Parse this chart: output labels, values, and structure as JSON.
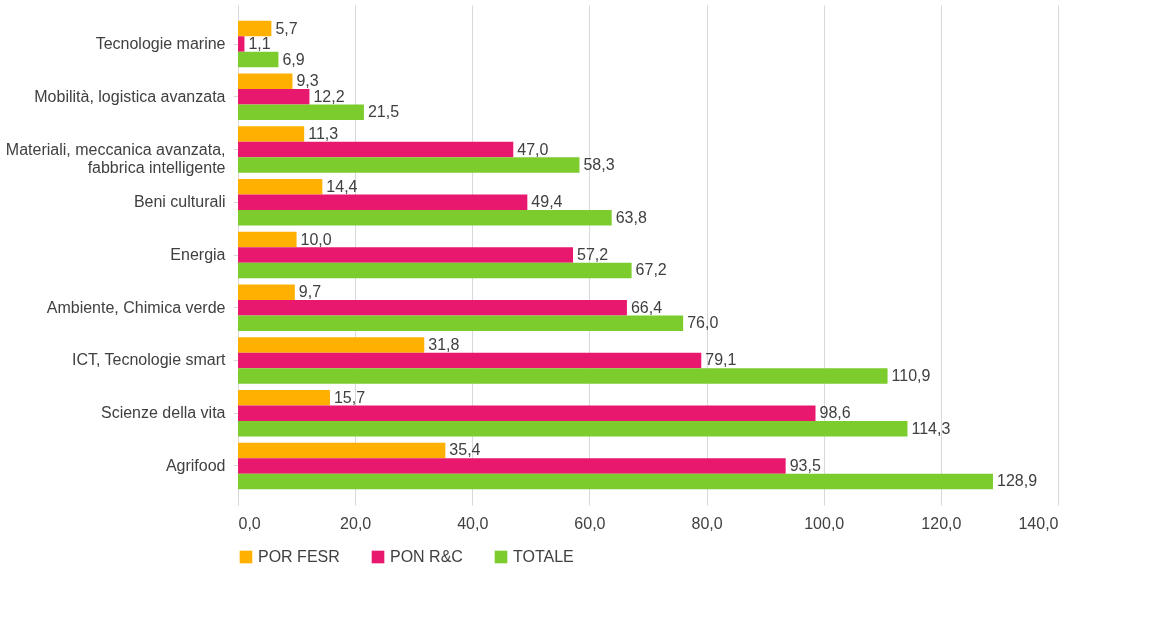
{
  "chart_data": {
    "type": "bar",
    "orientation": "horizontal",
    "categories": [
      "Tecnologie marine",
      "Mobilità, logistica avanzata",
      "Materiali, meccanica avanzata, fabbrica intelligente",
      "Beni culturali",
      "Energia",
      "Ambiente, Chimica verde",
      "ICT, Tecnologie smart",
      "Scienze della vita",
      "Agrifood"
    ],
    "series": [
      {
        "name": "POR FESR",
        "color": "#ffb000",
        "values": [
          5.7,
          9.3,
          11.3,
          14.4,
          10.0,
          9.7,
          31.8,
          15.7,
          35.4
        ],
        "value_labels": [
          "5,7",
          "9,3",
          "11,3",
          "14,4",
          "10,0",
          "9,7",
          "31,8",
          "15,7",
          "35,4"
        ]
      },
      {
        "name": "PON R&C",
        "color": "#e8186e",
        "values": [
          1.1,
          12.2,
          47.0,
          49.4,
          57.2,
          66.4,
          79.1,
          98.6,
          93.5
        ],
        "value_labels": [
          "1,1",
          "12,2",
          "47,0",
          "49,4",
          "57,2",
          "66,4",
          "79,1",
          "98,6",
          "93,5"
        ]
      },
      {
        "name": "TOTALE",
        "color": "#7ccc2e",
        "values": [
          6.9,
          21.5,
          58.3,
          63.8,
          67.2,
          76.0,
          110.9,
          114.3,
          128.9
        ],
        "value_labels": [
          "6,9",
          "21,5",
          "58,3",
          "63,8",
          "67,2",
          "76,0",
          "110,9",
          "114,3",
          "128,9"
        ]
      }
    ],
    "xlim": [
      0,
      140
    ],
    "xticks": [
      {
        "value": 0,
        "label": "0,0"
      },
      {
        "value": 20,
        "label": "20,0"
      },
      {
        "value": 40,
        "label": "40,0"
      },
      {
        "value": 60,
        "label": "60,0"
      },
      {
        "value": 80,
        "label": "80,0"
      },
      {
        "value": 100,
        "label": "100,0"
      },
      {
        "value": 120,
        "label": "120,0"
      },
      {
        "value": 140,
        "label": "140,0"
      }
    ],
    "grid": "x",
    "legend": "bottom"
  }
}
